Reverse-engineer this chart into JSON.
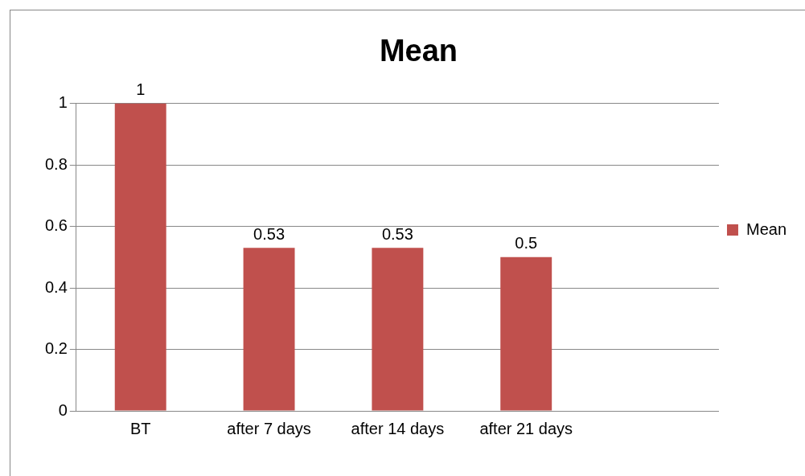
{
  "chart_data": {
    "type": "bar",
    "title": "Mean",
    "categories": [
      "BT",
      "after 7 days",
      "after 14 days",
      "after 21 days",
      null
    ],
    "series": [
      {
        "name": "Mean",
        "color": "#c0504d",
        "values": [
          1,
          0.53,
          0.53,
          0.5,
          null
        ]
      }
    ],
    "ylim": [
      0,
      1
    ],
    "yticks": [
      0,
      0.2,
      0.4,
      0.6,
      0.8,
      1
    ],
    "grid": "y",
    "legend": "right",
    "data_labels": true
  }
}
